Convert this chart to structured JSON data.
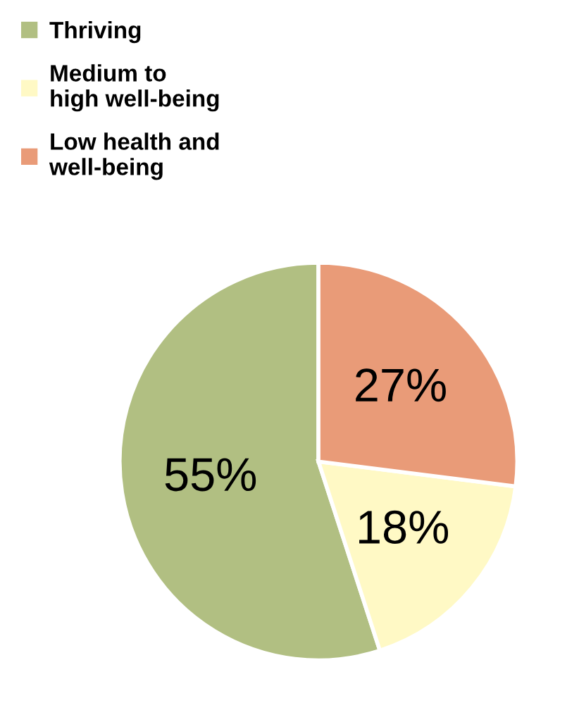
{
  "chart_data": {
    "type": "pie",
    "categories": [
      "Thriving",
      "Medium to\nhigh well-being",
      "Low health and\nwell-being"
    ],
    "values": [
      55,
      18,
      27
    ],
    "colors": [
      "#b1bf82",
      "#fff9c5",
      "#e99b78"
    ],
    "value_labels": [
      "55%",
      "18%",
      "27%"
    ],
    "legend": "top left"
  }
}
